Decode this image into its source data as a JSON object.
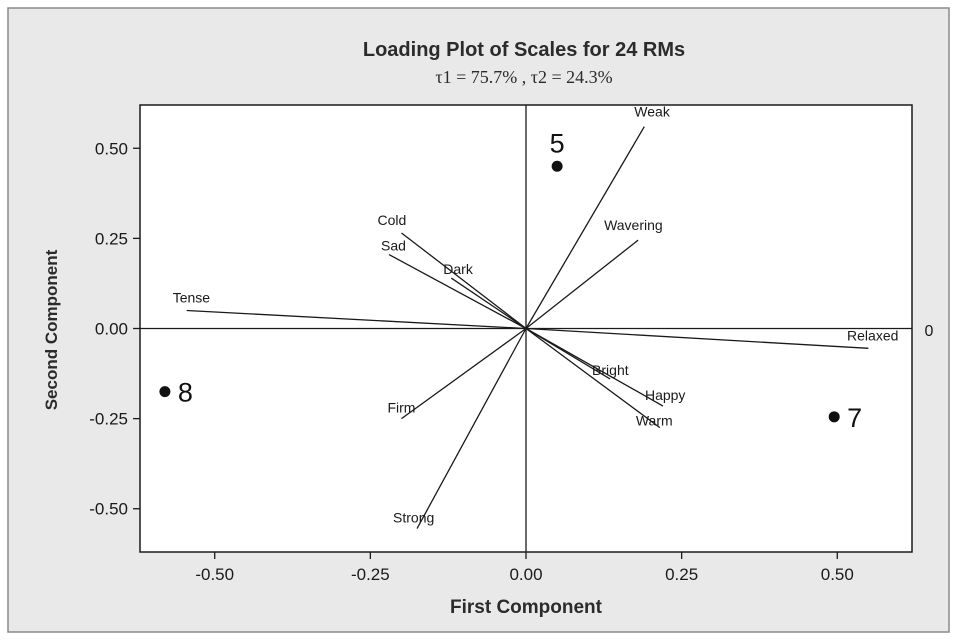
{
  "chart_data": {
    "type": "scatter",
    "title": "Loading Plot of Scales for 24 RMs",
    "subtitle": "τ1 = 75.7% , τ2 = 24.3%",
    "xlabel": "First Component",
    "ylabel": "Second Component",
    "xlim": [
      -0.62,
      0.62
    ],
    "ylim": [
      -0.62,
      0.62
    ],
    "xticks": [
      {
        "value": -0.5,
        "label": "-0.50"
      },
      {
        "value": -0.25,
        "label": "-0.25"
      },
      {
        "value": 0,
        "label": "0.00"
      },
      {
        "value": 0.25,
        "label": "0.25"
      },
      {
        "value": 0.5,
        "label": "0.50"
      }
    ],
    "yticks": [
      {
        "value": 0.5,
        "label": "0.50"
      },
      {
        "value": 0.25,
        "label": "0.25"
      },
      {
        "value": 0,
        "label": "0.00"
      },
      {
        "value": -0.25,
        "label": "-0.25"
      },
      {
        "value": -0.5,
        "label": "-0.50"
      }
    ],
    "reference_lines": {
      "x": 0,
      "y": 0
    },
    "zero_annotation": "0",
    "loadings": [
      {
        "label": "Weak",
        "x": 0.19,
        "y": 0.56
      },
      {
        "label": "Wavering",
        "x": 0.18,
        "y": 0.245
      },
      {
        "label": "Cold",
        "x": -0.2,
        "y": 0.265
      },
      {
        "label": "Sad",
        "x": -0.22,
        "y": 0.205
      },
      {
        "label": "Dark",
        "x": -0.12,
        "y": 0.14
      },
      {
        "label": "Tense",
        "x": -0.545,
        "y": 0.05
      },
      {
        "label": "Relaxed",
        "x": 0.55,
        "y": -0.055
      },
      {
        "label": "Bright",
        "x": 0.135,
        "y": -0.14
      },
      {
        "label": "Happy",
        "x": 0.22,
        "y": -0.215
      },
      {
        "label": "Warm",
        "x": 0.215,
        "y": -0.275
      },
      {
        "label": "Firm",
        "x": -0.2,
        "y": -0.25
      },
      {
        "label": "Strong",
        "x": -0.175,
        "y": -0.555
      }
    ],
    "points": [
      {
        "label": "5",
        "x": 0.05,
        "y": 0.45
      },
      {
        "label": "8",
        "x": -0.58,
        "y": -0.175
      },
      {
        "label": "7",
        "x": 0.495,
        "y": -0.245
      }
    ],
    "grid": false,
    "colors": {
      "line": "#1a1a1a",
      "outer_background": "#e9e9e9",
      "plot_background": "#ffffff"
    }
  }
}
